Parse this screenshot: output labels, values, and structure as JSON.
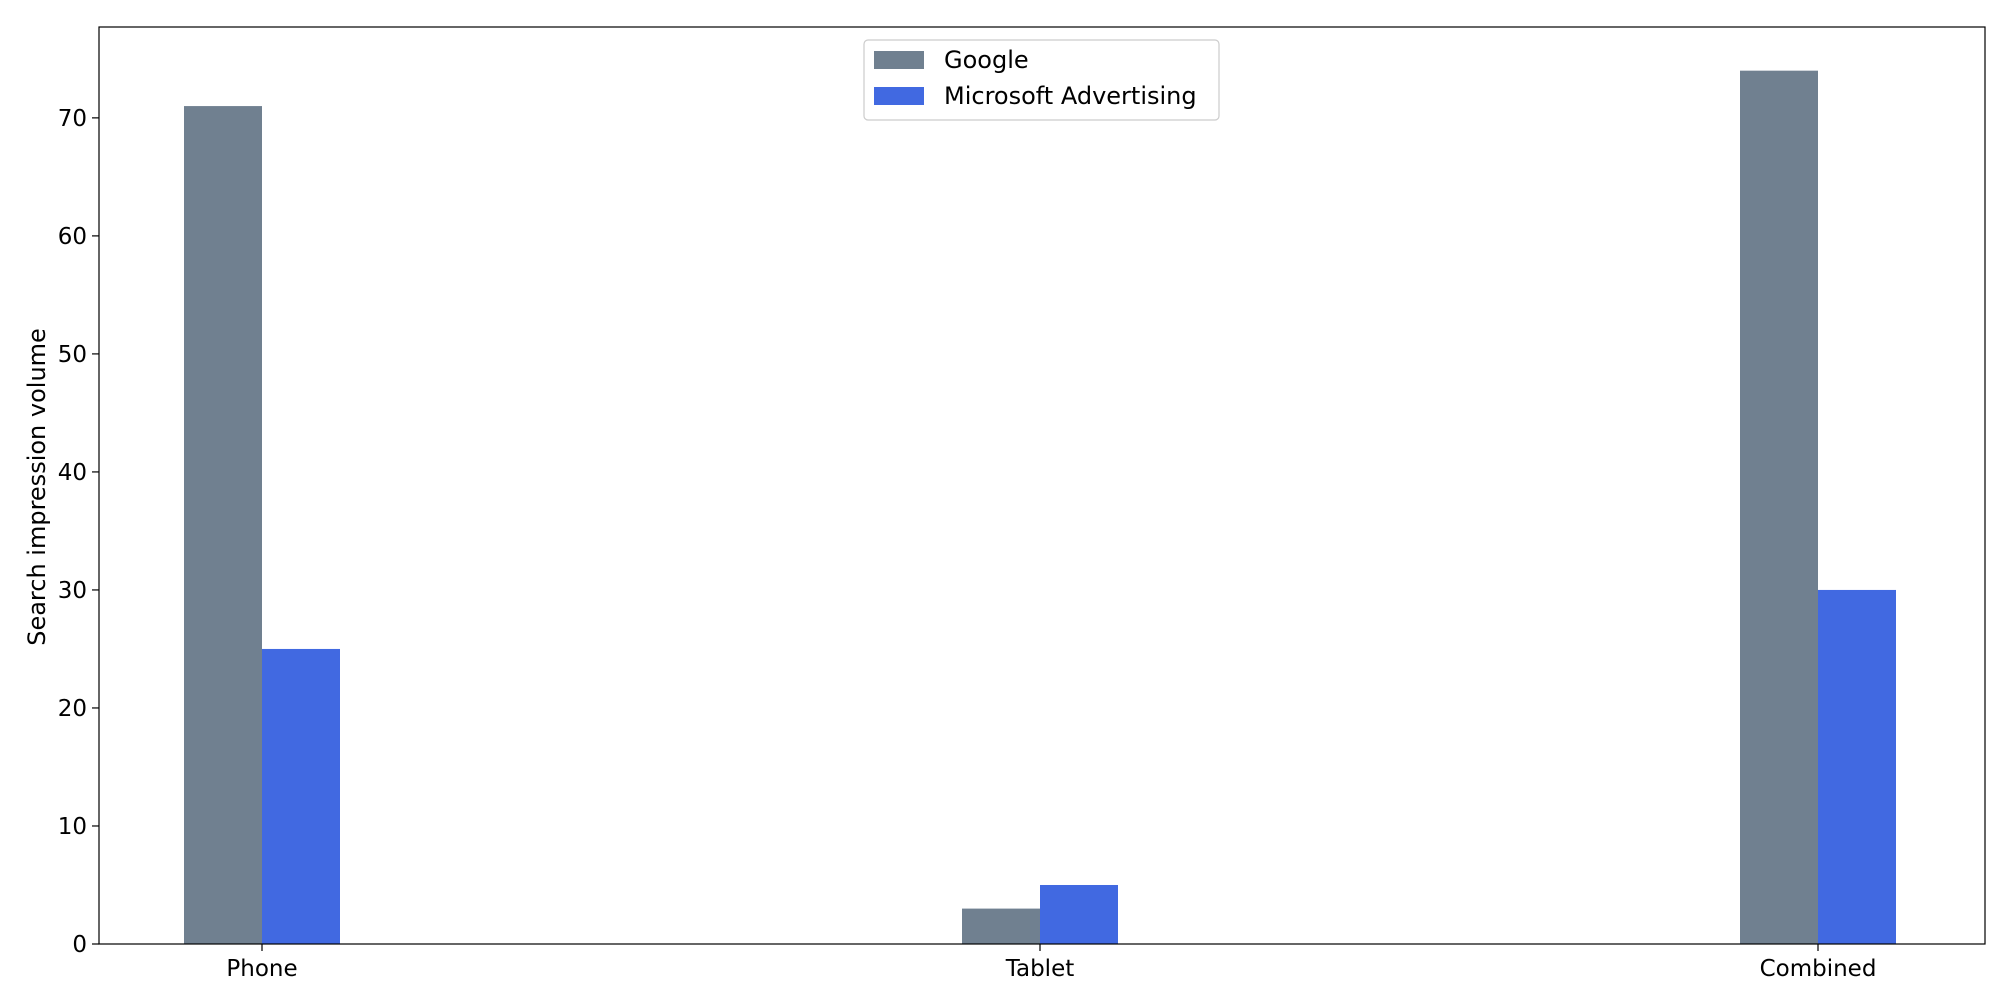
{
  "chart_data": {
    "type": "bar",
    "categories": [
      "Phone",
      "Tablet",
      "Combined"
    ],
    "series": [
      {
        "name": "Google",
        "values": [
          71,
          3,
          74
        ],
        "color": "#708090"
      },
      {
        "name": "Microsoft Advertising",
        "values": [
          25,
          5,
          30
        ],
        "color": "#4169E1"
      }
    ],
    "title": "",
    "xlabel": "",
    "ylabel": "Search impression volume",
    "ylim": [
      0,
      77.7
    ],
    "yticks": [
      0,
      10,
      20,
      30,
      40,
      50,
      60,
      70
    ],
    "grid": false,
    "legend_position": "top-center"
  }
}
